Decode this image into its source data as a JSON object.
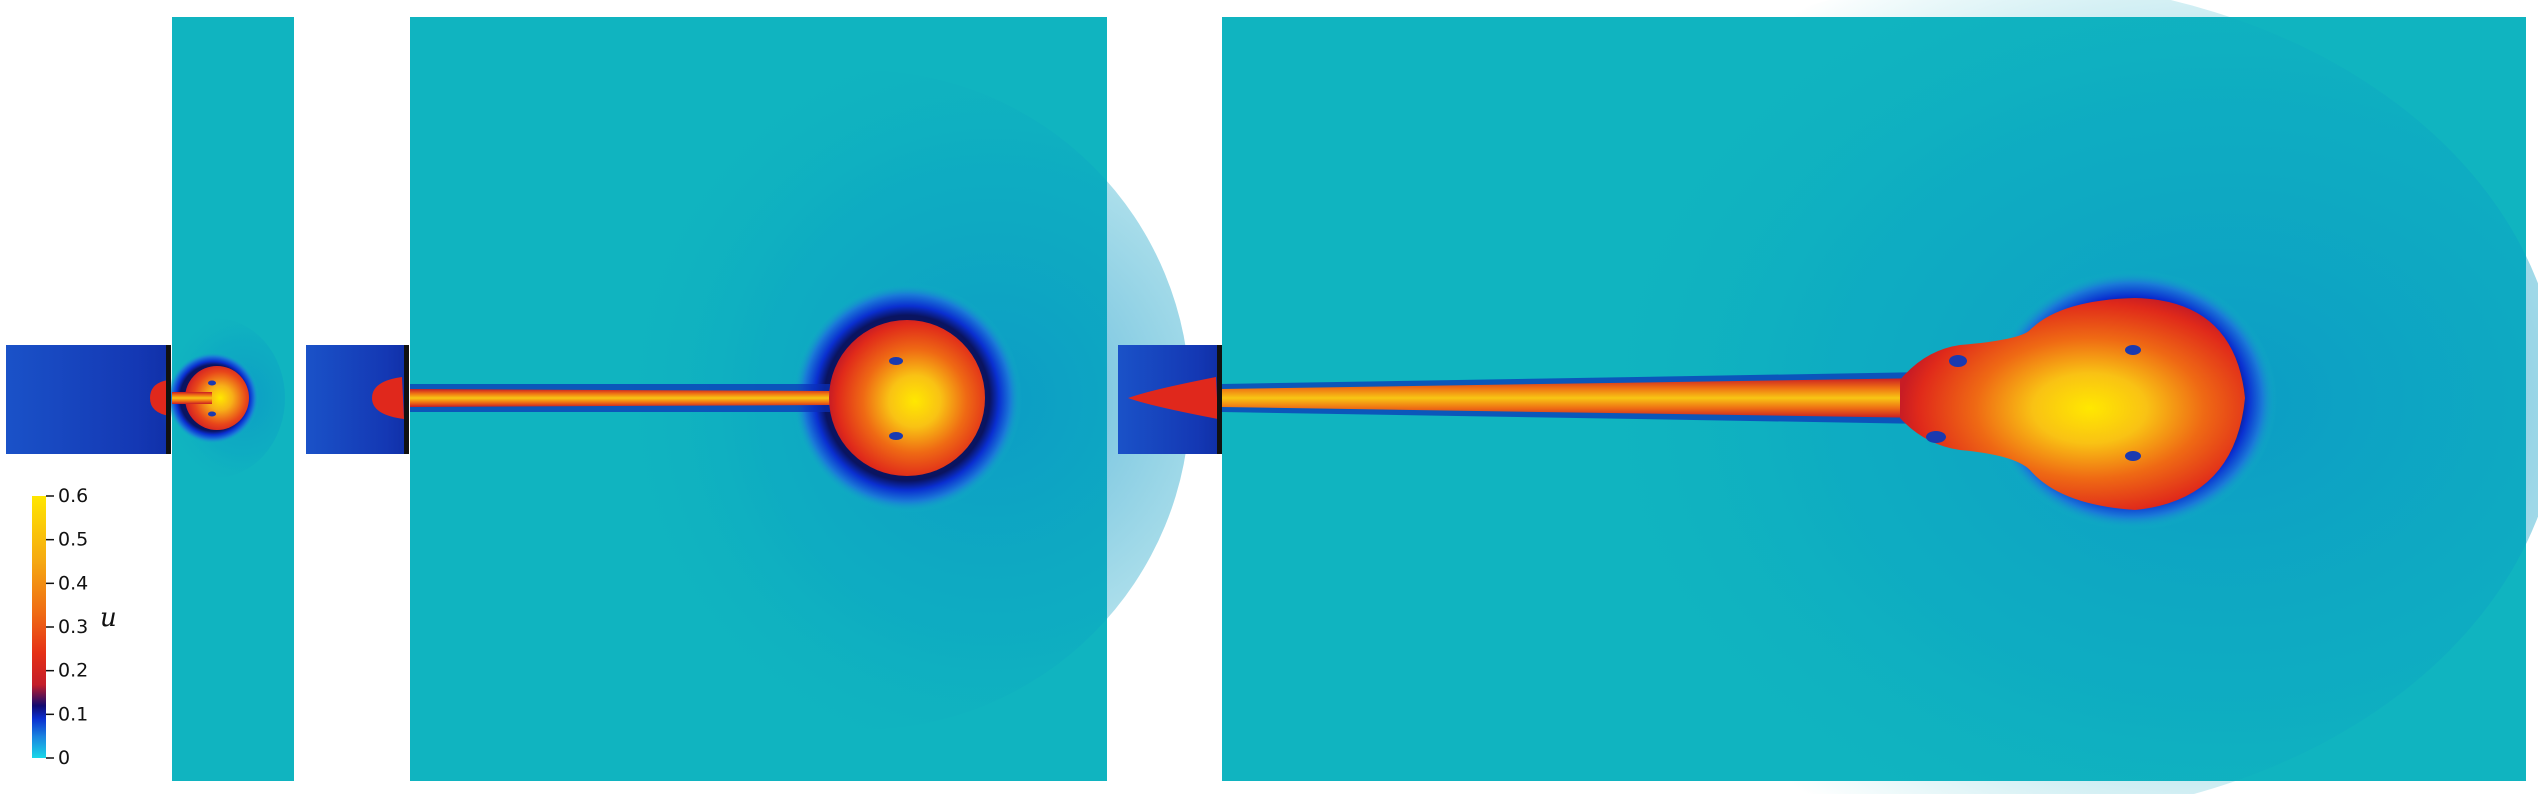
{
  "figure": {
    "panel_count": 3,
    "panels": [
      {
        "name": "panel-1"
      },
      {
        "name": "panel-2"
      },
      {
        "name": "panel-3"
      }
    ]
  },
  "colorbar": {
    "variable": "u",
    "ticks": [
      "0",
      "0.1",
      "0.2",
      "0.3",
      "0.4",
      "0.5",
      "0.6"
    ],
    "range": [
      0,
      0.6
    ],
    "colors": [
      "#19d8e8",
      "#0a2fd0",
      "#120a70",
      "#d62828",
      "#ea3a12",
      "#f39a12",
      "#ffe000"
    ]
  },
  "colors": {
    "background_field": "#10b4c0",
    "inlet_field": "#1840b8",
    "jet_core": "#ffe000",
    "jet_edge": "#e52a16",
    "halo": "#0a2fb8",
    "wall": "#111111"
  }
}
